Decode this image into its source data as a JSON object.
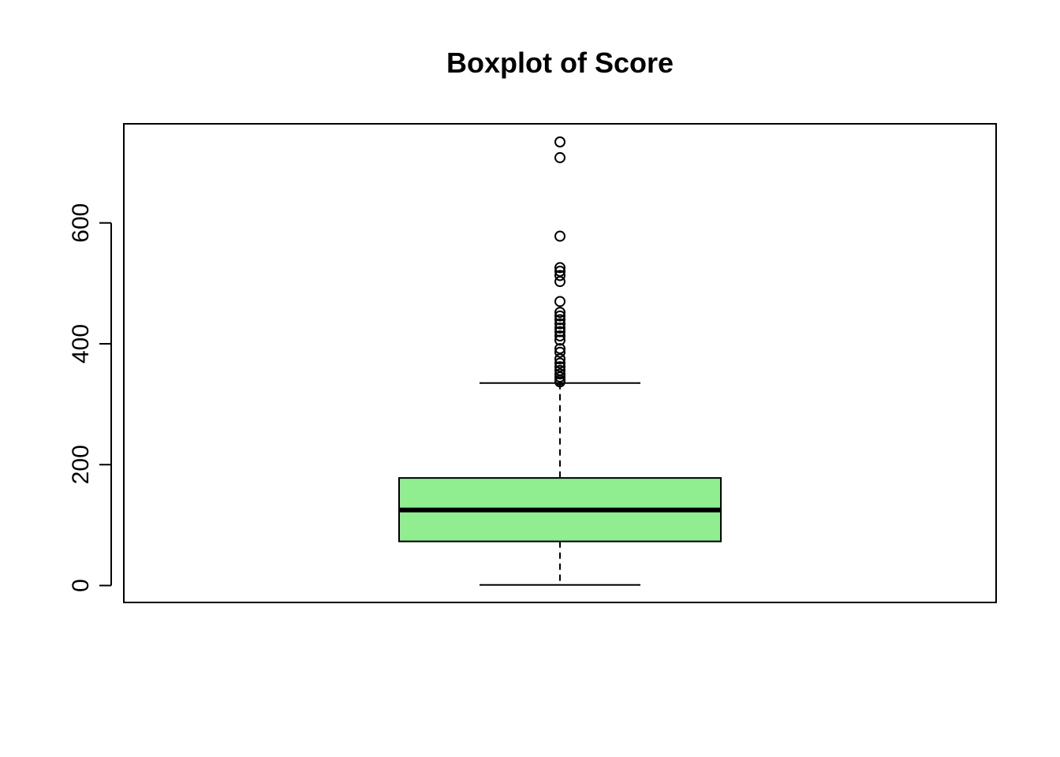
{
  "chart_data": {
    "type": "boxplot",
    "title": "Boxplot of Score",
    "xlabel": "",
    "ylabel": "",
    "ylim": [
      -28,
      764
    ],
    "yticks": [
      0,
      200,
      400,
      600
    ],
    "ytick_labels": [
      "0",
      "200",
      "400",
      "600"
    ],
    "grid": false,
    "box": {
      "min": 1,
      "q1": 73,
      "median": 125,
      "q3": 178,
      "max": 335,
      "fill": "#90EE90",
      "outliers": [
        734,
        708,
        578,
        526,
        520,
        513,
        503,
        470,
        452,
        446,
        440,
        433,
        426,
        420,
        413,
        406,
        392,
        386,
        375,
        368,
        362,
        356,
        350,
        345,
        340,
        337
      ]
    }
  }
}
